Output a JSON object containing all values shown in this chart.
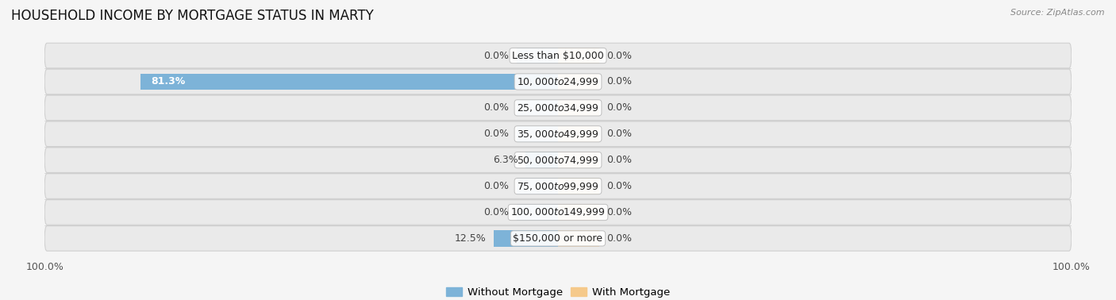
{
  "title": "HOUSEHOLD INCOME BY MORTGAGE STATUS IN MARTY",
  "source": "Source: ZipAtlas.com",
  "categories": [
    "Less than $10,000",
    "$10,000 to $24,999",
    "$25,000 to $34,999",
    "$35,000 to $49,999",
    "$50,000 to $74,999",
    "$75,000 to $99,999",
    "$100,000 to $149,999",
    "$150,000 or more"
  ],
  "without_mortgage": [
    0.0,
    81.3,
    0.0,
    0.0,
    6.3,
    0.0,
    0.0,
    12.5
  ],
  "with_mortgage": [
    0.0,
    0.0,
    0.0,
    0.0,
    0.0,
    0.0,
    0.0,
    0.0
  ],
  "without_mortgage_color": "#7db3d8",
  "with_mortgage_color": "#f5c98a",
  "row_bg_color": "#eaeaea",
  "row_border_color": "#d0d0d0",
  "background_color": "#f5f5f5",
  "xlim": [
    -100,
    100
  ],
  "stub_size": 8.0,
  "legend_labels": [
    "Without Mortgage",
    "With Mortgage"
  ],
  "title_fontsize": 12,
  "label_fontsize": 9,
  "value_fontsize": 9,
  "bar_height": 0.62
}
